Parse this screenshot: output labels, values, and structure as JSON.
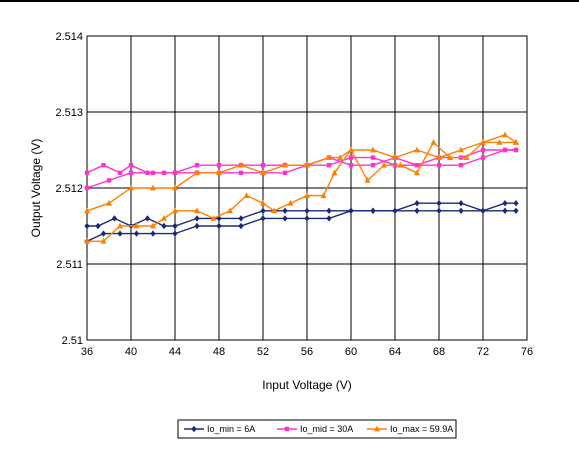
{
  "chart_data": {
    "type": "line",
    "title": "",
    "xlabel": "Input Voltage (V)",
    "ylabel": "Output Voltage (V)",
    "xlim": [
      36,
      76
    ],
    "ylim": [
      2.51,
      2.514
    ],
    "x_ticks": [
      "36",
      "40",
      "44",
      "48",
      "52",
      "56",
      "60",
      "64",
      "68",
      "72",
      "76"
    ],
    "y_ticks": [
      "2.51",
      "2.511",
      "2.512",
      "2.513",
      "2.514"
    ],
    "grid": true,
    "legend_position": "bottom",
    "series": [
      {
        "name": "Io_min = 6A",
        "color": "#1a2a7a",
        "marker": "diamond",
        "lines": [
          {
            "x": [
              36,
              37,
              38.5,
              40,
              41.5,
              43,
              44,
              46,
              48,
              50,
              52,
              54,
              56,
              58,
              60,
              62,
              64,
              66,
              68,
              70,
              72,
              74,
              75
            ],
            "y": [
              2.5115,
              2.5115,
              2.5116,
              2.5115,
              2.5116,
              2.5115,
              2.5115,
              2.5116,
              2.5116,
              2.5116,
              2.5117,
              2.5117,
              2.5117,
              2.5117,
              2.5117,
              2.5117,
              2.5117,
              2.5118,
              2.5118,
              2.5118,
              2.5117,
              2.5118,
              2.5118
            ]
          },
          {
            "x": [
              36,
              37.5,
              39,
              40.5,
              42,
              44,
              46,
              48,
              50,
              52,
              54,
              56,
              58,
              60,
              62,
              64,
              66,
              68,
              70,
              72,
              74,
              75
            ],
            "y": [
              2.5113,
              2.5114,
              2.5114,
              2.5114,
              2.5114,
              2.5114,
              2.5115,
              2.5115,
              2.5115,
              2.5116,
              2.5116,
              2.5116,
              2.5116,
              2.5117,
              2.5117,
              2.5117,
              2.5117,
              2.5117,
              2.5117,
              2.5117,
              2.5117,
              2.5117
            ]
          }
        ]
      },
      {
        "name": "Io_mid = 30A",
        "color": "#ff33cc",
        "marker": "square",
        "lines": [
          {
            "x": [
              36,
              37.5,
              39,
              40,
              41.5,
              43,
              44,
              46,
              48,
              50,
              52,
              54,
              56,
              58,
              60,
              62,
              64,
              66,
              68,
              70,
              72,
              74,
              75
            ],
            "y": [
              2.5122,
              2.5123,
              2.5122,
              2.5123,
              2.5122,
              2.5122,
              2.5122,
              2.5123,
              2.5123,
              2.5123,
              2.5123,
              2.5123,
              2.5123,
              2.5124,
              2.5123,
              2.5123,
              2.5124,
              2.5123,
              2.5124,
              2.5124,
              2.5125,
              2.5125,
              2.5125
            ]
          },
          {
            "x": [
              36,
              38,
              40,
              42,
              44,
              46,
              48,
              50,
              52,
              54,
              56,
              58,
              60,
              62,
              64,
              66,
              68,
              70,
              72,
              74,
              75
            ],
            "y": [
              2.512,
              2.5121,
              2.5122,
              2.5122,
              2.5122,
              2.5122,
              2.5122,
              2.5122,
              2.5122,
              2.5122,
              2.5123,
              2.5123,
              2.5124,
              2.5124,
              2.5123,
              2.5123,
              2.5123,
              2.5123,
              2.5124,
              2.5125,
              2.5125
            ]
          }
        ]
      },
      {
        "name": "Io_max = 59.9A",
        "color": "#ff8000",
        "marker": "triangle",
        "lines": [
          {
            "x": [
              36,
              37.5,
              39,
              40.5,
              42,
              43,
              44,
              46,
              47.5,
              49,
              50.5,
              52,
              53,
              54.5,
              56,
              57.5,
              58.5,
              60,
              61.5,
              63,
              64.5,
              66,
              67.5,
              69,
              70.5,
              72,
              73.5,
              75
            ],
            "y": [
              2.5113,
              2.5113,
              2.5115,
              2.5115,
              2.5115,
              2.5116,
              2.5117,
              2.5117,
              2.5116,
              2.5117,
              2.5119,
              2.5118,
              2.5117,
              2.5118,
              2.5119,
              2.5119,
              2.5122,
              2.5125,
              2.5121,
              2.5123,
              2.5123,
              2.5122,
              2.5126,
              2.5124,
              2.5124,
              2.5126,
              2.5126,
              2.5126
            ]
          },
          {
            "x": [
              36,
              38,
              40,
              42,
              44,
              46,
              48,
              50,
              52,
              54,
              56,
              58,
              59,
              60,
              62,
              64,
              66,
              68,
              70,
              72,
              74,
              75
            ],
            "y": [
              2.5117,
              2.5118,
              2.512,
              2.512,
              2.512,
              2.5122,
              2.5122,
              2.5123,
              2.5122,
              2.5123,
              2.5123,
              2.5124,
              2.5124,
              2.5125,
              2.5125,
              2.5124,
              2.5125,
              2.5124,
              2.5125,
              2.5126,
              2.5127,
              2.5126
            ]
          }
        ]
      }
    ]
  }
}
